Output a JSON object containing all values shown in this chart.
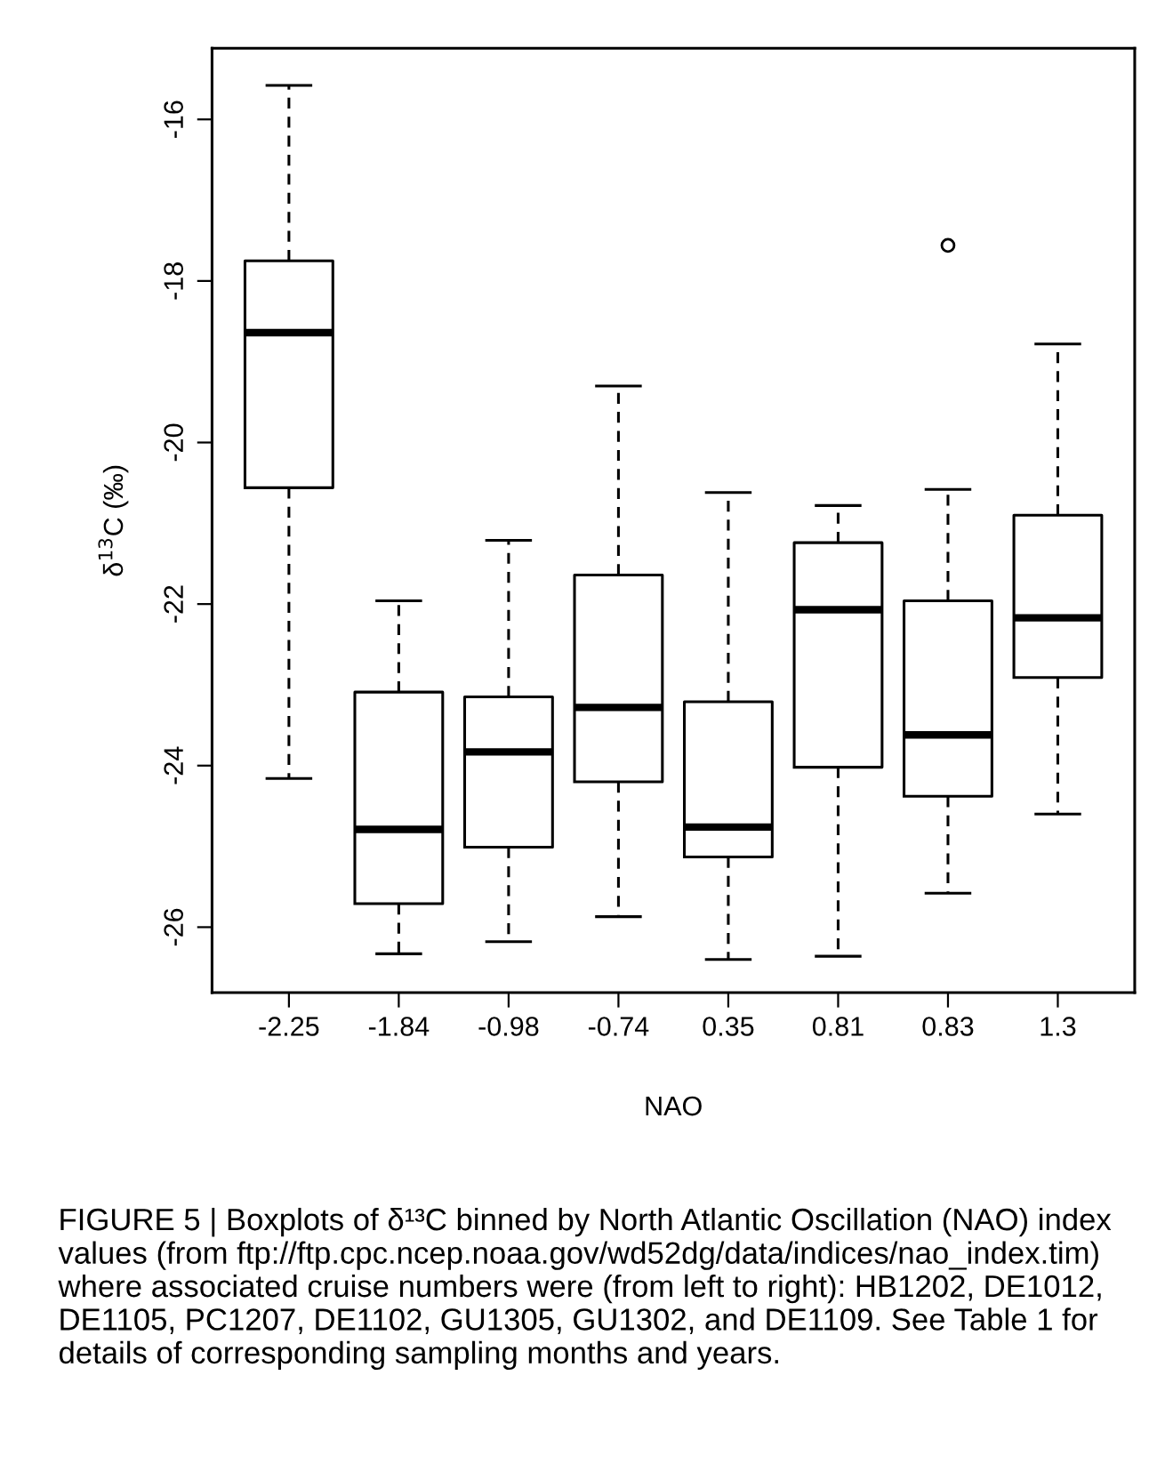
{
  "chart_data": {
    "type": "box",
    "xlabel": "NAO",
    "ylabel": "δ$^{13}$C (‰)",
    "categories": [
      "-2.25",
      "-1.84",
      "-0.98",
      "-0.74",
      "0.35",
      "0.81",
      "0.83",
      "1.3"
    ],
    "boxes": [
      {
        "low": -24.16,
        "q1": -20.56,
        "median": -18.64,
        "q3": -17.75,
        "high": -15.58
      },
      {
        "low": -26.33,
        "q1": -25.71,
        "median": -24.79,
        "q3": -23.09,
        "high": -21.96
      },
      {
        "low": -26.18,
        "q1": -25.01,
        "median": -23.83,
        "q3": -23.15,
        "high": -21.21
      },
      {
        "low": -25.87,
        "q1": -24.2,
        "median": -23.28,
        "q3": -21.64,
        "high": -19.3
      },
      {
        "low": -26.4,
        "q1": -25.13,
        "median": -24.76,
        "q3": -23.21,
        "high": -20.62
      },
      {
        "low": -26.36,
        "q1": -24.02,
        "median": -22.07,
        "q3": -21.24,
        "high": -20.78
      },
      {
        "low": -25.58,
        "q1": -24.38,
        "median": -23.62,
        "q3": -21.96,
        "high": -20.58,
        "outliers": [
          -17.56
        ]
      },
      {
        "low": -24.6,
        "q1": -22.91,
        "median": -22.17,
        "q3": -20.9,
        "high": -18.78
      }
    ],
    "ylim": [
      -26.81,
      -15.12
    ],
    "yticks": [
      -26,
      -24,
      -22,
      -20,
      -18,
      -16
    ],
    "grid": false,
    "legend": false,
    "annotations": [
      "FIGURE 5 | Boxplots of δ¹³C binned by North Atlantic Oscillation (NAO) index values (from ftp://ftp.cpc.ncep.noaa.gov/wd52dg/data/indices/nao_index.tim) where associated cruise numbers were (from left to right): HB1202, DE1012, DE1105, PC1207, DE1102, GU1305, GU1302, and DE1109. See Table 1 for details of corresponding sampling months and years."
    ]
  }
}
